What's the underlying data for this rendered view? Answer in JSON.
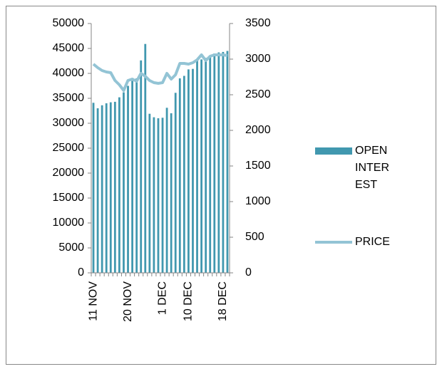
{
  "chart_data": {
    "type": "bar-line",
    "categories": [
      "11 NOV",
      null,
      null,
      null,
      null,
      null,
      null,
      null,
      "20 NOV",
      null,
      null,
      null,
      null,
      null,
      null,
      null,
      "1 DEC",
      null,
      null,
      null,
      null,
      null,
      "10 DEC",
      null,
      null,
      null,
      null,
      null,
      null,
      null,
      "18 DEC",
      null
    ],
    "series": [
      {
        "name": "OPEN INTEREST",
        "type": "bar",
        "axis": "y",
        "color": "#4198af",
        "values": [
          34100,
          33000,
          33600,
          34000,
          34200,
          34300,
          35200,
          36200,
          37500,
          38500,
          39000,
          42600,
          45900,
          31900,
          31200,
          31000,
          31100,
          33100,
          32000,
          36100,
          39000,
          39500,
          40800,
          40900,
          42500,
          42800,
          43100,
          43500,
          44000,
          44200,
          44300,
          44500
        ]
      },
      {
        "name": "PRICE",
        "type": "line",
        "axis": "y2",
        "color": "#93c4d5",
        "values": [
          2930,
          2880,
          2840,
          2820,
          2810,
          2700,
          2640,
          2560,
          2700,
          2720,
          2690,
          2800,
          2760,
          2700,
          2670,
          2660,
          2670,
          2800,
          2720,
          2780,
          2940,
          2940,
          2930,
          2950,
          2990,
          3060,
          2980,
          3040,
          3060,
          3060,
          3060,
          3050
        ]
      }
    ],
    "ylim": [
      0,
      50000
    ],
    "yticks": [
      0,
      5000,
      10000,
      15000,
      20000,
      25000,
      30000,
      35000,
      40000,
      45000,
      50000
    ],
    "y2lim": [
      0,
      3500
    ],
    "y2ticks": [
      0,
      500,
      1000,
      1500,
      2000,
      2500,
      3000,
      3500
    ],
    "legend": "right"
  }
}
